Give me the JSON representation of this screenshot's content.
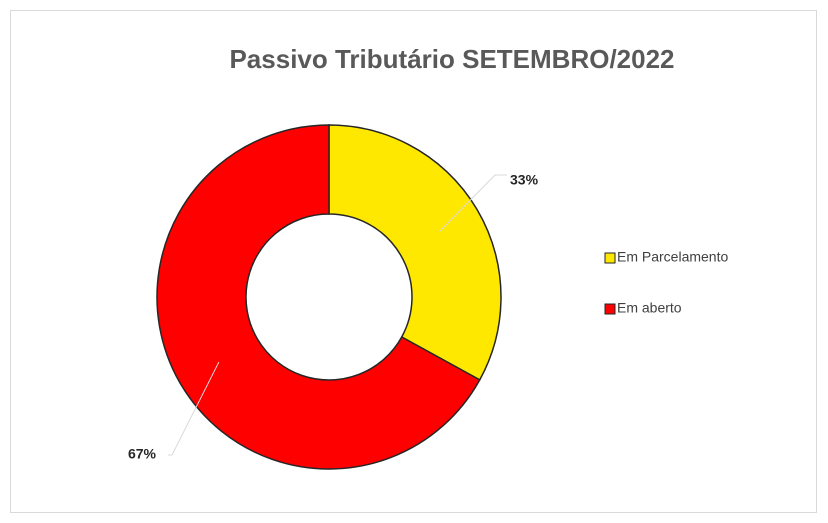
{
  "chart_data": {
    "type": "donut",
    "title": "Passivo Tributário SETEMBRO/2022",
    "categories": [
      "Em Parcelamento",
      "Em aberto"
    ],
    "values": [
      33,
      67
    ],
    "value_labels": [
      "33%",
      "67%"
    ],
    "colors": [
      "#ffe800",
      "#ff0000"
    ],
    "legend": "right"
  }
}
